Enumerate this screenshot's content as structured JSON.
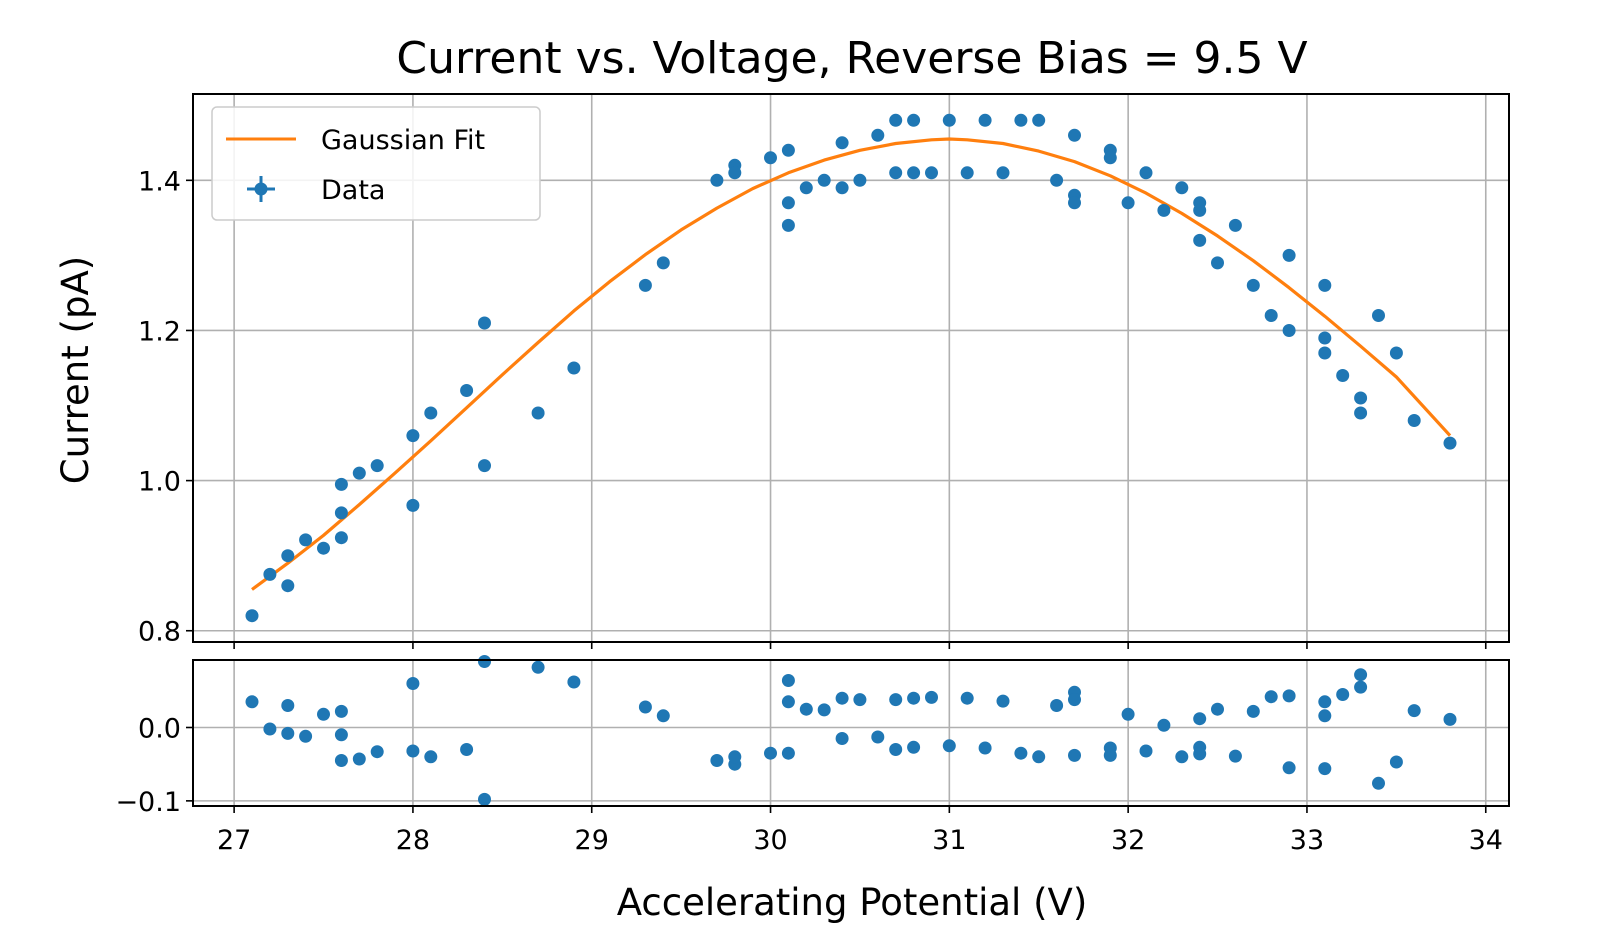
{
  "chart_data": [
    {
      "panel": "main",
      "type": "scatter",
      "title": "Current vs. Voltage, Reverse Bias = 9.5 V",
      "xlabel": "",
      "ylabel": "Current (pA)",
      "xlim": [
        26.77,
        34.13
      ],
      "ylim": [
        0.785,
        1.515
      ],
      "yticks": [
        0.8,
        1.0,
        1.2,
        1.4
      ],
      "ytick_labels": [
        "0.8",
        "1.0",
        "1.2",
        "1.4"
      ],
      "xticks": [
        27,
        28,
        29,
        30,
        31,
        32,
        33,
        34
      ],
      "grid": true,
      "legend_position": "top-left",
      "series": [
        {
          "name": "Data",
          "kind": "points",
          "color": "#1f77b4",
          "points": [
            [
              27.1,
              0.82
            ],
            [
              27.2,
              0.875
            ],
            [
              27.3,
              0.9
            ],
            [
              27.3,
              0.86
            ],
            [
              27.4,
              0.921
            ],
            [
              27.5,
              0.91
            ],
            [
              27.6,
              0.995
            ],
            [
              27.6,
              0.957
            ],
            [
              27.6,
              0.924
            ],
            [
              27.7,
              1.01
            ],
            [
              27.8,
              1.02
            ],
            [
              28.0,
              1.06
            ],
            [
              28.0,
              0.967
            ],
            [
              28.1,
              1.09
            ],
            [
              28.3,
              1.12
            ],
            [
              28.4,
              1.21
            ],
            [
              28.4,
              1.02
            ],
            [
              28.7,
              1.09
            ],
            [
              28.9,
              1.15
            ],
            [
              29.3,
              1.26
            ],
            [
              29.4,
              1.29
            ],
            [
              29.7,
              1.4
            ],
            [
              29.8,
              1.42
            ],
            [
              29.8,
              1.41
            ],
            [
              30.0,
              1.43
            ],
            [
              30.1,
              1.44
            ],
            [
              30.1,
              1.37
            ],
            [
              30.1,
              1.34
            ],
            [
              30.2,
              1.39
            ],
            [
              30.3,
              1.4
            ],
            [
              30.4,
              1.45
            ],
            [
              30.4,
              1.39
            ],
            [
              30.5,
              1.4
            ],
            [
              30.6,
              1.46
            ],
            [
              30.7,
              1.48
            ],
            [
              30.7,
              1.41
            ],
            [
              30.8,
              1.48
            ],
            [
              30.8,
              1.41
            ],
            [
              30.9,
              1.41
            ],
            [
              31.0,
              1.48
            ],
            [
              31.1,
              1.41
            ],
            [
              31.2,
              1.48
            ],
            [
              31.3,
              1.41
            ],
            [
              31.4,
              1.48
            ],
            [
              31.5,
              1.48
            ],
            [
              31.6,
              1.4
            ],
            [
              31.7,
              1.46
            ],
            [
              31.7,
              1.38
            ],
            [
              31.7,
              1.37
            ],
            [
              31.9,
              1.44
            ],
            [
              31.9,
              1.43
            ],
            [
              32.0,
              1.37
            ],
            [
              32.1,
              1.41
            ],
            [
              32.2,
              1.36
            ],
            [
              32.3,
              1.39
            ],
            [
              32.4,
              1.37
            ],
            [
              32.4,
              1.36
            ],
            [
              32.4,
              1.32
            ],
            [
              32.5,
              1.29
            ],
            [
              32.6,
              1.34
            ],
            [
              32.7,
              1.26
            ],
            [
              32.8,
              1.22
            ],
            [
              32.9,
              1.3
            ],
            [
              32.9,
              1.2
            ],
            [
              33.1,
              1.26
            ],
            [
              33.1,
              1.19
            ],
            [
              33.1,
              1.17
            ],
            [
              33.2,
              1.14
            ],
            [
              33.3,
              1.11
            ],
            [
              33.3,
              1.09
            ],
            [
              33.4,
              1.22
            ],
            [
              33.5,
              1.17
            ],
            [
              33.6,
              1.08
            ],
            [
              33.8,
              1.05
            ]
          ]
        },
        {
          "name": "Gaussian Fit",
          "kind": "line",
          "color": "#ff7f0e",
          "x": [
            27.1,
            27.3,
            27.5,
            27.7,
            27.9,
            28.1,
            28.3,
            28.5,
            28.7,
            28.9,
            29.1,
            29.3,
            29.5,
            29.7,
            29.9,
            30.1,
            30.3,
            30.5,
            30.7,
            30.9,
            31.0,
            31.1,
            31.3,
            31.5,
            31.7,
            31.9,
            32.1,
            32.3,
            32.5,
            32.7,
            32.9,
            33.1,
            33.3,
            33.5,
            33.8
          ],
          "y": [
            0.855,
            0.89,
            0.927,
            0.968,
            1.01,
            1.053,
            1.097,
            1.141,
            1.184,
            1.226,
            1.265,
            1.301,
            1.334,
            1.363,
            1.389,
            1.41,
            1.427,
            1.44,
            1.449,
            1.454,
            1.455,
            1.454,
            1.449,
            1.439,
            1.425,
            1.406,
            1.383,
            1.356,
            1.326,
            1.293,
            1.257,
            1.219,
            1.179,
            1.138,
            1.06
          ]
        }
      ]
    },
    {
      "panel": "residuals",
      "type": "scatter",
      "xlabel": "Accelerating Potential (V)",
      "ylabel": "",
      "xlim": [
        26.77,
        34.13
      ],
      "ylim": [
        -0.107,
        0.092
      ],
      "yticks": [
        -0.1,
        0.0
      ],
      "ytick_labels": [
        "−0.1",
        "0.0"
      ],
      "xticks": [
        27,
        28,
        29,
        30,
        31,
        32,
        33,
        34
      ],
      "xtick_labels": [
        "27",
        "28",
        "29",
        "30",
        "31",
        "32",
        "33",
        "34"
      ],
      "grid": true,
      "series": [
        {
          "kind": "points",
          "color": "#1f77b4",
          "points": [
            [
              27.1,
              0.035
            ],
            [
              27.2,
              -0.002
            ],
            [
              27.3,
              0.03
            ],
            [
              27.3,
              -0.008
            ],
            [
              27.4,
              -0.012
            ],
            [
              27.5,
              0.018
            ],
            [
              27.6,
              0.022
            ],
            [
              27.6,
              -0.01
            ],
            [
              27.6,
              -0.045
            ],
            [
              27.7,
              -0.043
            ],
            [
              27.8,
              -0.033
            ],
            [
              28.0,
              0.06
            ],
            [
              28.0,
              -0.032
            ],
            [
              28.1,
              -0.04
            ],
            [
              28.3,
              -0.03
            ],
            [
              28.4,
              0.09
            ],
            [
              28.4,
              -0.098
            ],
            [
              28.7,
              0.082
            ],
            [
              28.9,
              0.062
            ],
            [
              29.3,
              0.028
            ],
            [
              29.4,
              0.016
            ],
            [
              29.7,
              -0.045
            ],
            [
              29.8,
              -0.05
            ],
            [
              29.8,
              -0.04
            ],
            [
              30.0,
              -0.035
            ],
            [
              30.1,
              0.064
            ],
            [
              30.1,
              0.035
            ],
            [
              30.1,
              -0.035
            ],
            [
              30.2,
              0.025
            ],
            [
              30.3,
              0.024
            ],
            [
              30.4,
              0.04
            ],
            [
              30.4,
              -0.015
            ],
            [
              30.5,
              0.038
            ],
            [
              30.6,
              -0.013
            ],
            [
              30.7,
              0.038
            ],
            [
              30.7,
              -0.03
            ],
            [
              30.8,
              0.04
            ],
            [
              30.8,
              -0.027
            ],
            [
              30.9,
              0.041
            ],
            [
              31.0,
              -0.025
            ],
            [
              31.1,
              0.04
            ],
            [
              31.2,
              -0.028
            ],
            [
              31.3,
              0.036
            ],
            [
              31.4,
              -0.035
            ],
            [
              31.5,
              -0.04
            ],
            [
              31.6,
              0.03
            ],
            [
              31.7,
              0.048
            ],
            [
              31.7,
              0.038
            ],
            [
              31.7,
              -0.038
            ],
            [
              31.9,
              -0.028
            ],
            [
              31.9,
              -0.038
            ],
            [
              32.0,
              0.018
            ],
            [
              32.1,
              -0.032
            ],
            [
              32.2,
              0.003
            ],
            [
              32.3,
              -0.04
            ],
            [
              32.4,
              0.012
            ],
            [
              32.4,
              -0.027
            ],
            [
              32.4,
              -0.036
            ],
            [
              32.5,
              0.025
            ],
            [
              32.6,
              -0.039
            ],
            [
              32.7,
              0.022
            ],
            [
              32.8,
              0.042
            ],
            [
              32.9,
              0.043
            ],
            [
              32.9,
              -0.055
            ],
            [
              33.1,
              0.035
            ],
            [
              33.1,
              0.016
            ],
            [
              33.1,
              -0.056
            ],
            [
              33.2,
              0.045
            ],
            [
              33.3,
              0.072
            ],
            [
              33.3,
              0.055
            ],
            [
              33.4,
              -0.076
            ],
            [
              33.5,
              -0.047
            ],
            [
              33.6,
              0.023
            ],
            [
              33.8,
              0.011
            ]
          ]
        }
      ]
    }
  ]
}
